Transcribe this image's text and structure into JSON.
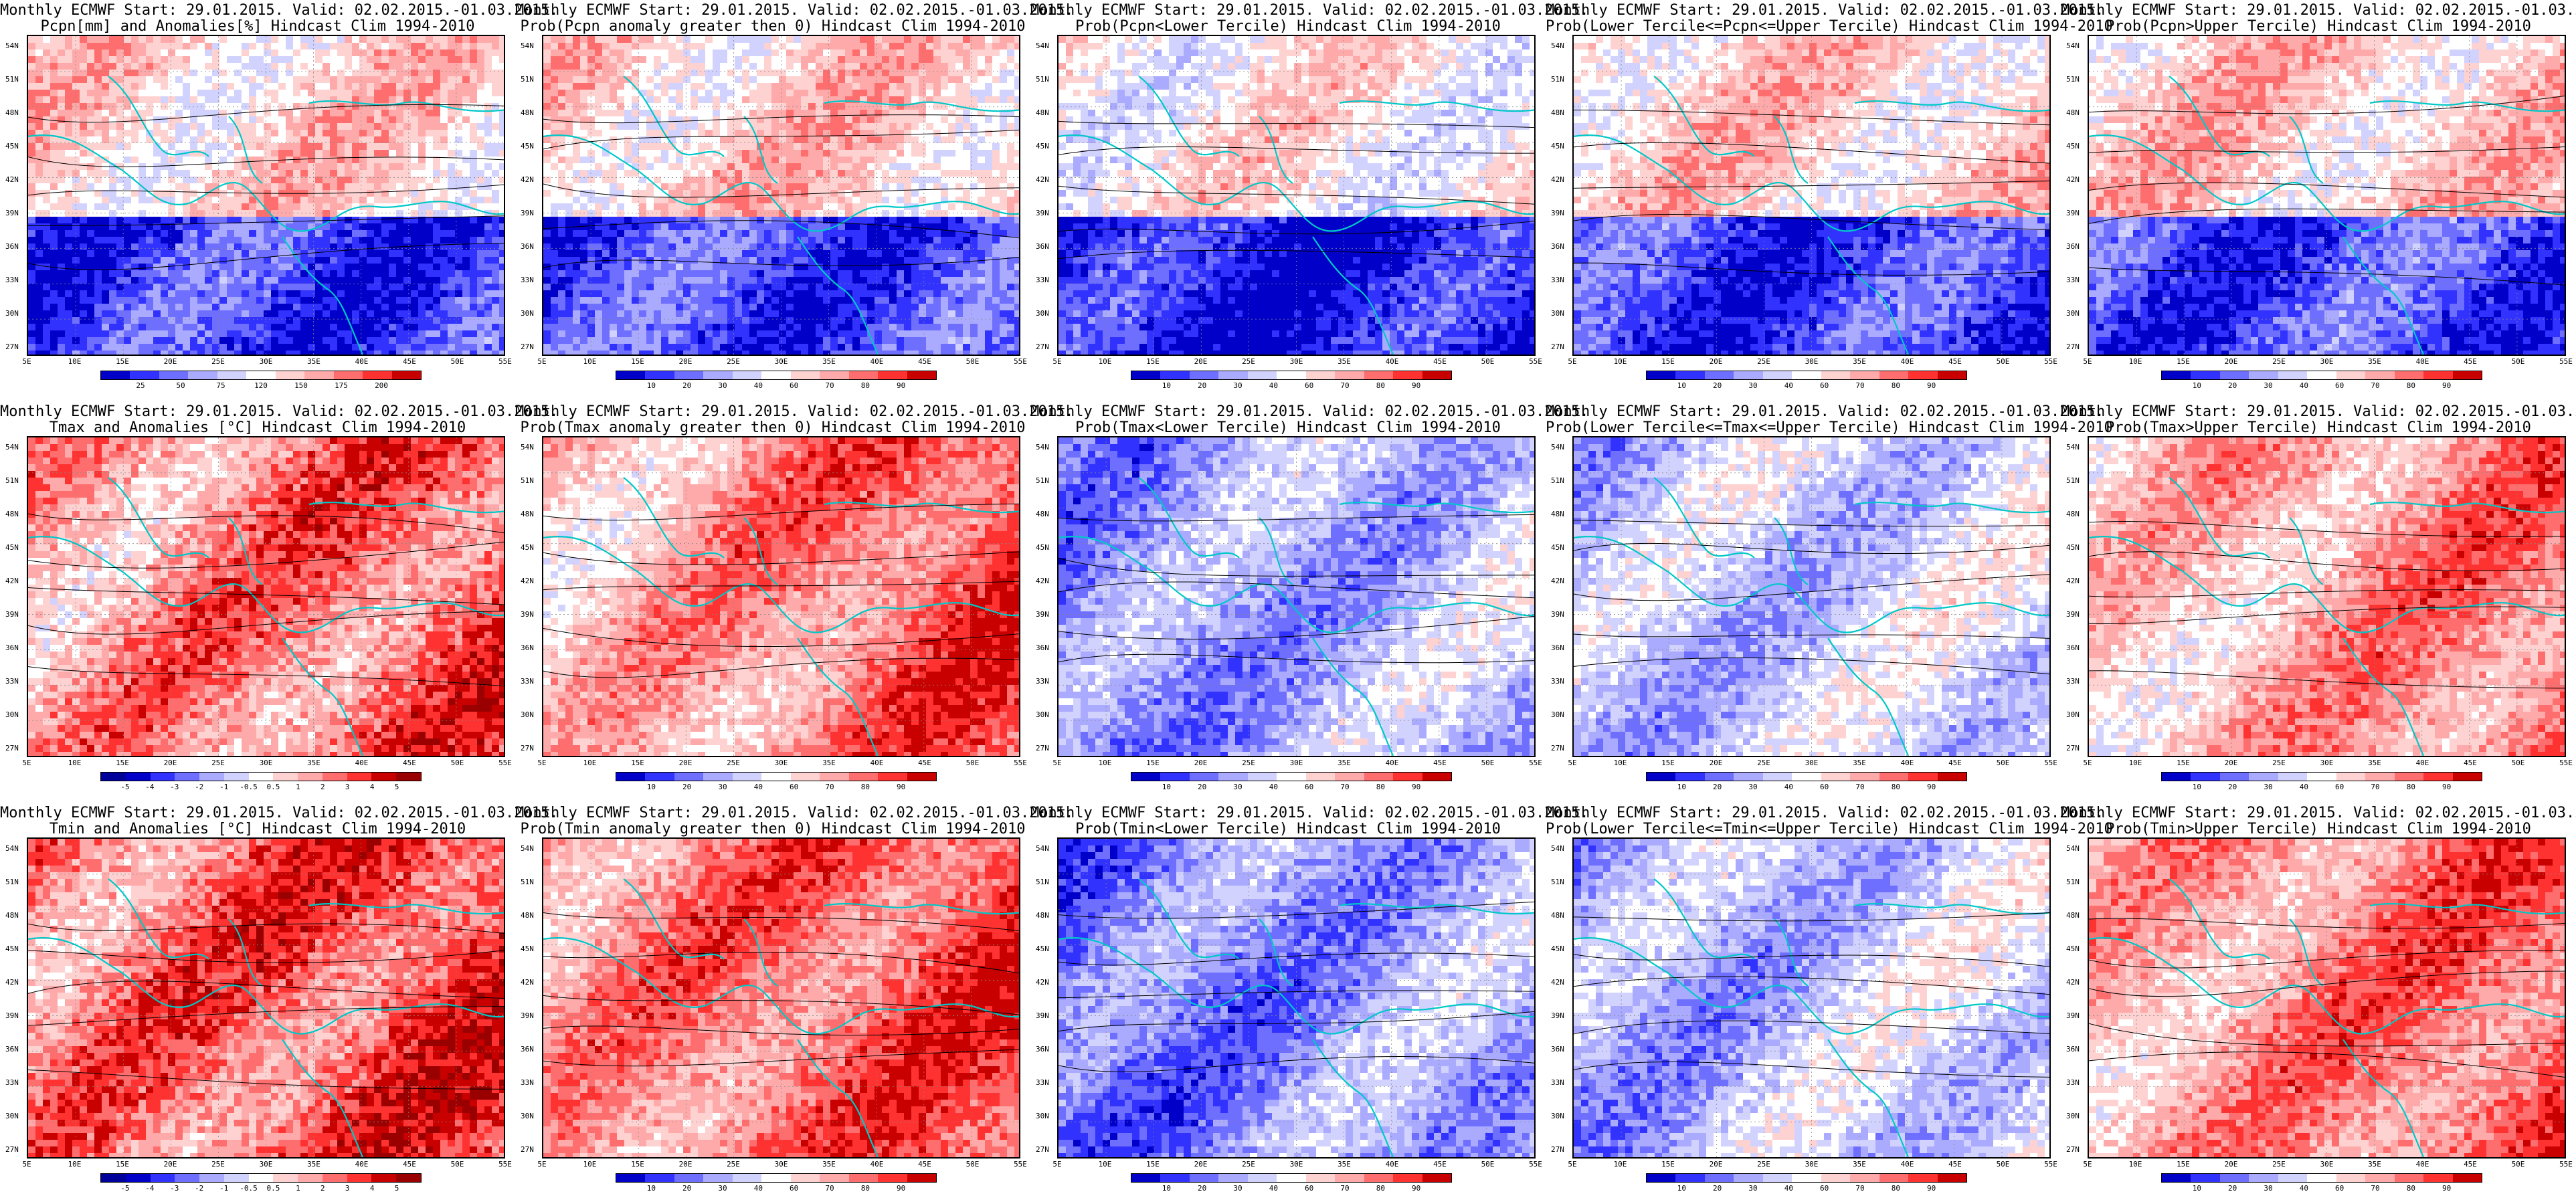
{
  "titles": {
    "row_line1": "Monthly ECMWF Start: 29.01.2015. Valid: 02.02.2015.-01.03.2015.",
    "precip": [
      "Pcpn[mm] and Anomalies[%] Hindcast Clim 1994-2010",
      "Prob(Pcpn anomaly greater then 0) Hindcast Clim 1994-2010",
      "Prob(Pcpn<Lower Tercile) Hindcast Clim 1994-2010",
      "Prob(Lower Tercile<=Pcpn<=Upper Tercile) Hindcast Clim 1994-2010",
      "Prob(Pcpn>Upper Tercile) Hindcast Clim 1994-2010"
    ],
    "tmax": [
      "Tmax and Anomalies [°C] Hindcast Clim 1994-2010",
      "Prob(Tmax anomaly greater then 0) Hindcast Clim 1994-2010",
      "Prob(Tmax<Lower Tercile) Hindcast Clim 1994-2010",
      "Prob(Lower Tercile<=Tmax<=Upper Tercile) Hindcast Clim 1994-2010",
      "Prob(Tmax>Upper Tercile) Hindcast Clim 1994-2010"
    ],
    "tmin": [
      "Tmin and Anomalies [°C] Hindcast Clim 1994-2010",
      "Prob(Tmin anomaly greater then 0) Hindcast Clim 1994-2010",
      "Prob(Tmin<Lower Tercile) Hindcast Clim 1994-2010",
      "Prob(Lower Tercile<=Tmin<=Upper Tercile) Hindcast Clim 1994-2010",
      "Prob(Tmin>Upper Tercile) Hindcast Clim 1994-2010"
    ]
  },
  "axes": {
    "lat_labels": [
      "54N",
      "51N",
      "48N",
      "45N",
      "42N",
      "39N",
      "36N",
      "33N",
      "30N",
      "27N"
    ],
    "lon_labels": [
      "5E",
      "10E",
      "15E",
      "20E",
      "25E",
      "30E",
      "35E",
      "40E",
      "45E",
      "50E",
      "55E"
    ]
  },
  "colorbars": {
    "precip_anom": {
      "ticks": [
        "25",
        "50",
        "75",
        "120",
        "150",
        "175",
        "200"
      ],
      "colors": [
        "#0000c8",
        "#3232ff",
        "#6e6eff",
        "#aaaaff",
        "#d2d2ff",
        "#ffffff",
        "#ffd2d2",
        "#ffaaaa",
        "#ff6e6e",
        "#ff3232",
        "#c80000"
      ]
    },
    "temp_anom": {
      "ticks": [
        "-5",
        "-4",
        "-3",
        "-2",
        "-1",
        "-0.5",
        "0.5",
        "1",
        "2",
        "3",
        "4",
        "5"
      ],
      "colors": [
        "#00009a",
        "#0000c8",
        "#3232ff",
        "#6e6eff",
        "#aaaaff",
        "#d2d2ff",
        "#ffffff",
        "#ffd2d2",
        "#ffaaaa",
        "#ff6e6e",
        "#ff3232",
        "#c80000",
        "#9a0000"
      ]
    },
    "prob": {
      "ticks": [
        "10",
        "20",
        "30",
        "40",
        "60",
        "70",
        "80",
        "90"
      ],
      "colors": [
        "#0000c8",
        "#3232ff",
        "#6e6eff",
        "#aaaaff",
        "#d2d2ff",
        "#ffffff",
        "#ffd2d2",
        "#ffaaaa",
        "#ff6e6e",
        "#ff3232",
        "#c80000"
      ]
    }
  },
  "panel_schemes": {
    "precip": [
      "precip_anom",
      "prob",
      "prob",
      "prob",
      "prob"
    ],
    "tmax": [
      "temp_anom",
      "prob",
      "prob",
      "prob",
      "prob"
    ],
    "tmin": [
      "temp_anom",
      "prob",
      "prob",
      "prob",
      "prob"
    ]
  }
}
